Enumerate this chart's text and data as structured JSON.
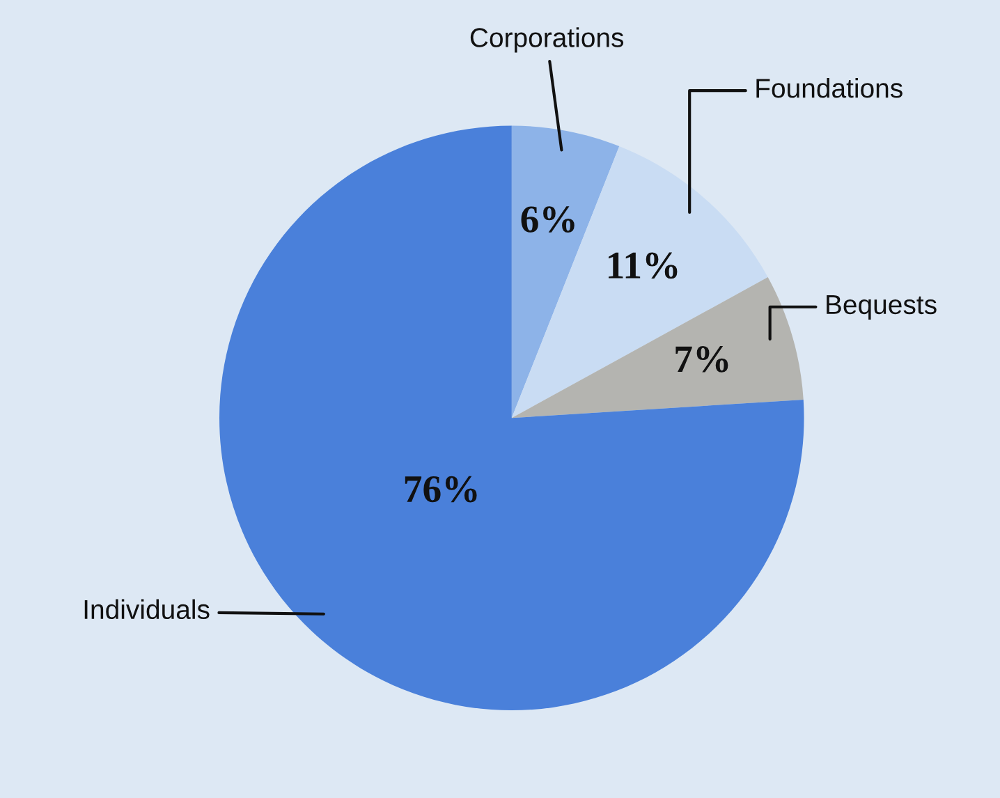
{
  "chart_data": {
    "type": "pie",
    "categories": [
      "Corporations",
      "Foundations",
      "Bequests",
      "Individuals"
    ],
    "values": [
      6,
      11,
      7,
      76
    ],
    "value_labels": [
      "6%",
      "11%",
      "7%",
      "76%"
    ],
    "colors": [
      "#8db3e8",
      "#c9dcf3",
      "#b4b4b0",
      "#4a80da"
    ]
  }
}
